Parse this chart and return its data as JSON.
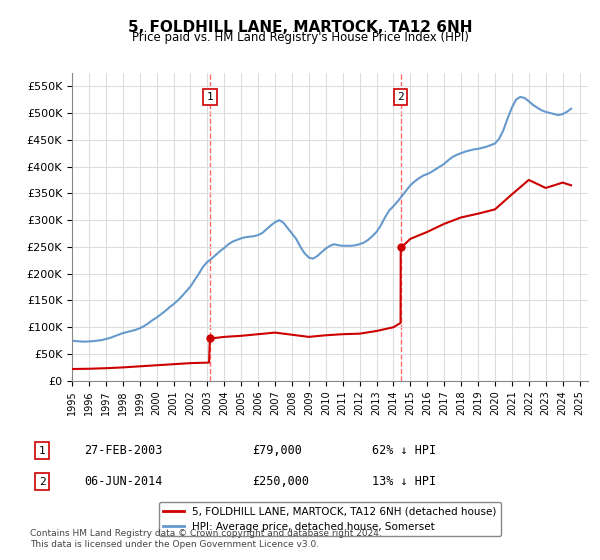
{
  "title": "5, FOLDHILL LANE, MARTOCK, TA12 6NH",
  "subtitle": "Price paid vs. HM Land Registry's House Price Index (HPI)",
  "title_fontsize": 11,
  "subtitle_fontsize": 9,
  "ylim": [
    0,
    575000
  ],
  "yticks": [
    0,
    50000,
    100000,
    150000,
    200000,
    250000,
    300000,
    350000,
    400000,
    450000,
    500000,
    550000
  ],
  "ytick_labels": [
    "£0",
    "£50K",
    "£100K",
    "£150K",
    "£200K",
    "£250K",
    "£300K",
    "£350K",
    "£400K",
    "£450K",
    "£500K",
    "£550K"
  ],
  "xlim_start": 1995.0,
  "xlim_end": 2025.5,
  "hpi_years": [
    1995.0,
    1995.25,
    1995.5,
    1995.75,
    1996.0,
    1996.25,
    1996.5,
    1996.75,
    1997.0,
    1997.25,
    1997.5,
    1997.75,
    1998.0,
    1998.25,
    1998.5,
    1998.75,
    1999.0,
    1999.25,
    1999.5,
    1999.75,
    2000.0,
    2000.25,
    2000.5,
    2000.75,
    2001.0,
    2001.25,
    2001.5,
    2001.75,
    2002.0,
    2002.25,
    2002.5,
    2002.75,
    2003.0,
    2003.25,
    2003.5,
    2003.75,
    2004.0,
    2004.25,
    2004.5,
    2004.75,
    2005.0,
    2005.25,
    2005.5,
    2005.75,
    2006.0,
    2006.25,
    2006.5,
    2006.75,
    2007.0,
    2007.25,
    2007.5,
    2007.75,
    2008.0,
    2008.25,
    2008.5,
    2008.75,
    2009.0,
    2009.25,
    2009.5,
    2009.75,
    2010.0,
    2010.25,
    2010.5,
    2010.75,
    2011.0,
    2011.25,
    2011.5,
    2011.75,
    2012.0,
    2012.25,
    2012.5,
    2012.75,
    2013.0,
    2013.25,
    2013.5,
    2013.75,
    2014.0,
    2014.25,
    2014.5,
    2014.75,
    2015.0,
    2015.25,
    2015.5,
    2015.75,
    2016.0,
    2016.25,
    2016.5,
    2016.75,
    2017.0,
    2017.25,
    2017.5,
    2017.75,
    2018.0,
    2018.25,
    2018.5,
    2018.75,
    2019.0,
    2019.25,
    2019.5,
    2019.75,
    2020.0,
    2020.25,
    2020.5,
    2020.75,
    2021.0,
    2021.25,
    2021.5,
    2021.75,
    2022.0,
    2022.25,
    2022.5,
    2022.75,
    2023.0,
    2023.25,
    2023.5,
    2023.75,
    2024.0,
    2024.25,
    2024.5
  ],
  "hpi_values": [
    75000,
    74000,
    73500,
    73000,
    73500,
    74000,
    75000,
    76000,
    78000,
    80000,
    83000,
    86000,
    89000,
    91000,
    93000,
    95000,
    98000,
    102000,
    107000,
    113000,
    118000,
    124000,
    130000,
    137000,
    143000,
    150000,
    158000,
    167000,
    176000,
    188000,
    200000,
    213000,
    222000,
    228000,
    235000,
    242000,
    248000,
    255000,
    260000,
    263000,
    266000,
    268000,
    269000,
    270000,
    272000,
    276000,
    283000,
    290000,
    296000,
    300000,
    295000,
    285000,
    275000,
    265000,
    250000,
    238000,
    230000,
    228000,
    233000,
    240000,
    247000,
    252000,
    255000,
    253000,
    252000,
    252000,
    252000,
    253000,
    255000,
    258000,
    263000,
    270000,
    278000,
    290000,
    305000,
    318000,
    326000,
    335000,
    345000,
    355000,
    365000,
    372000,
    378000,
    383000,
    386000,
    390000,
    395000,
    400000,
    405000,
    412000,
    418000,
    422000,
    425000,
    428000,
    430000,
    432000,
    433000,
    435000,
    437000,
    440000,
    443000,
    452000,
    468000,
    490000,
    510000,
    525000,
    530000,
    528000,
    522000,
    515000,
    510000,
    505000,
    502000,
    500000,
    498000,
    496000,
    498000,
    502000,
    508000
  ],
  "sale_years": [
    2003.15,
    2014.43
  ],
  "sale_prices": [
    79000,
    250000
  ],
  "sale_labels": [
    "1",
    "2"
  ],
  "sale_dates": [
    "27-FEB-2003",
    "06-JUN-2014"
  ],
  "sale_price_labels": [
    "£79,000",
    "£250,000"
  ],
  "sale_hpi_labels": [
    "62% ↓ HPI",
    "13% ↓ HPI"
  ],
  "red_line_color": "#cc0000",
  "blue_line_color": "#6699cc",
  "dashed_color": "#ff4444",
  "legend_label_red": "5, FOLDHILL LANE, MARTOCK, TA12 6NH (detached house)",
  "legend_label_blue": "HPI: Average price, detached house, Somerset",
  "footer_text": "Contains HM Land Registry data © Crown copyright and database right 2024.\nThis data is licensed under the Open Government Licence v3.0.",
  "background_color": "#ffffff",
  "grid_color": "#dddddd"
}
